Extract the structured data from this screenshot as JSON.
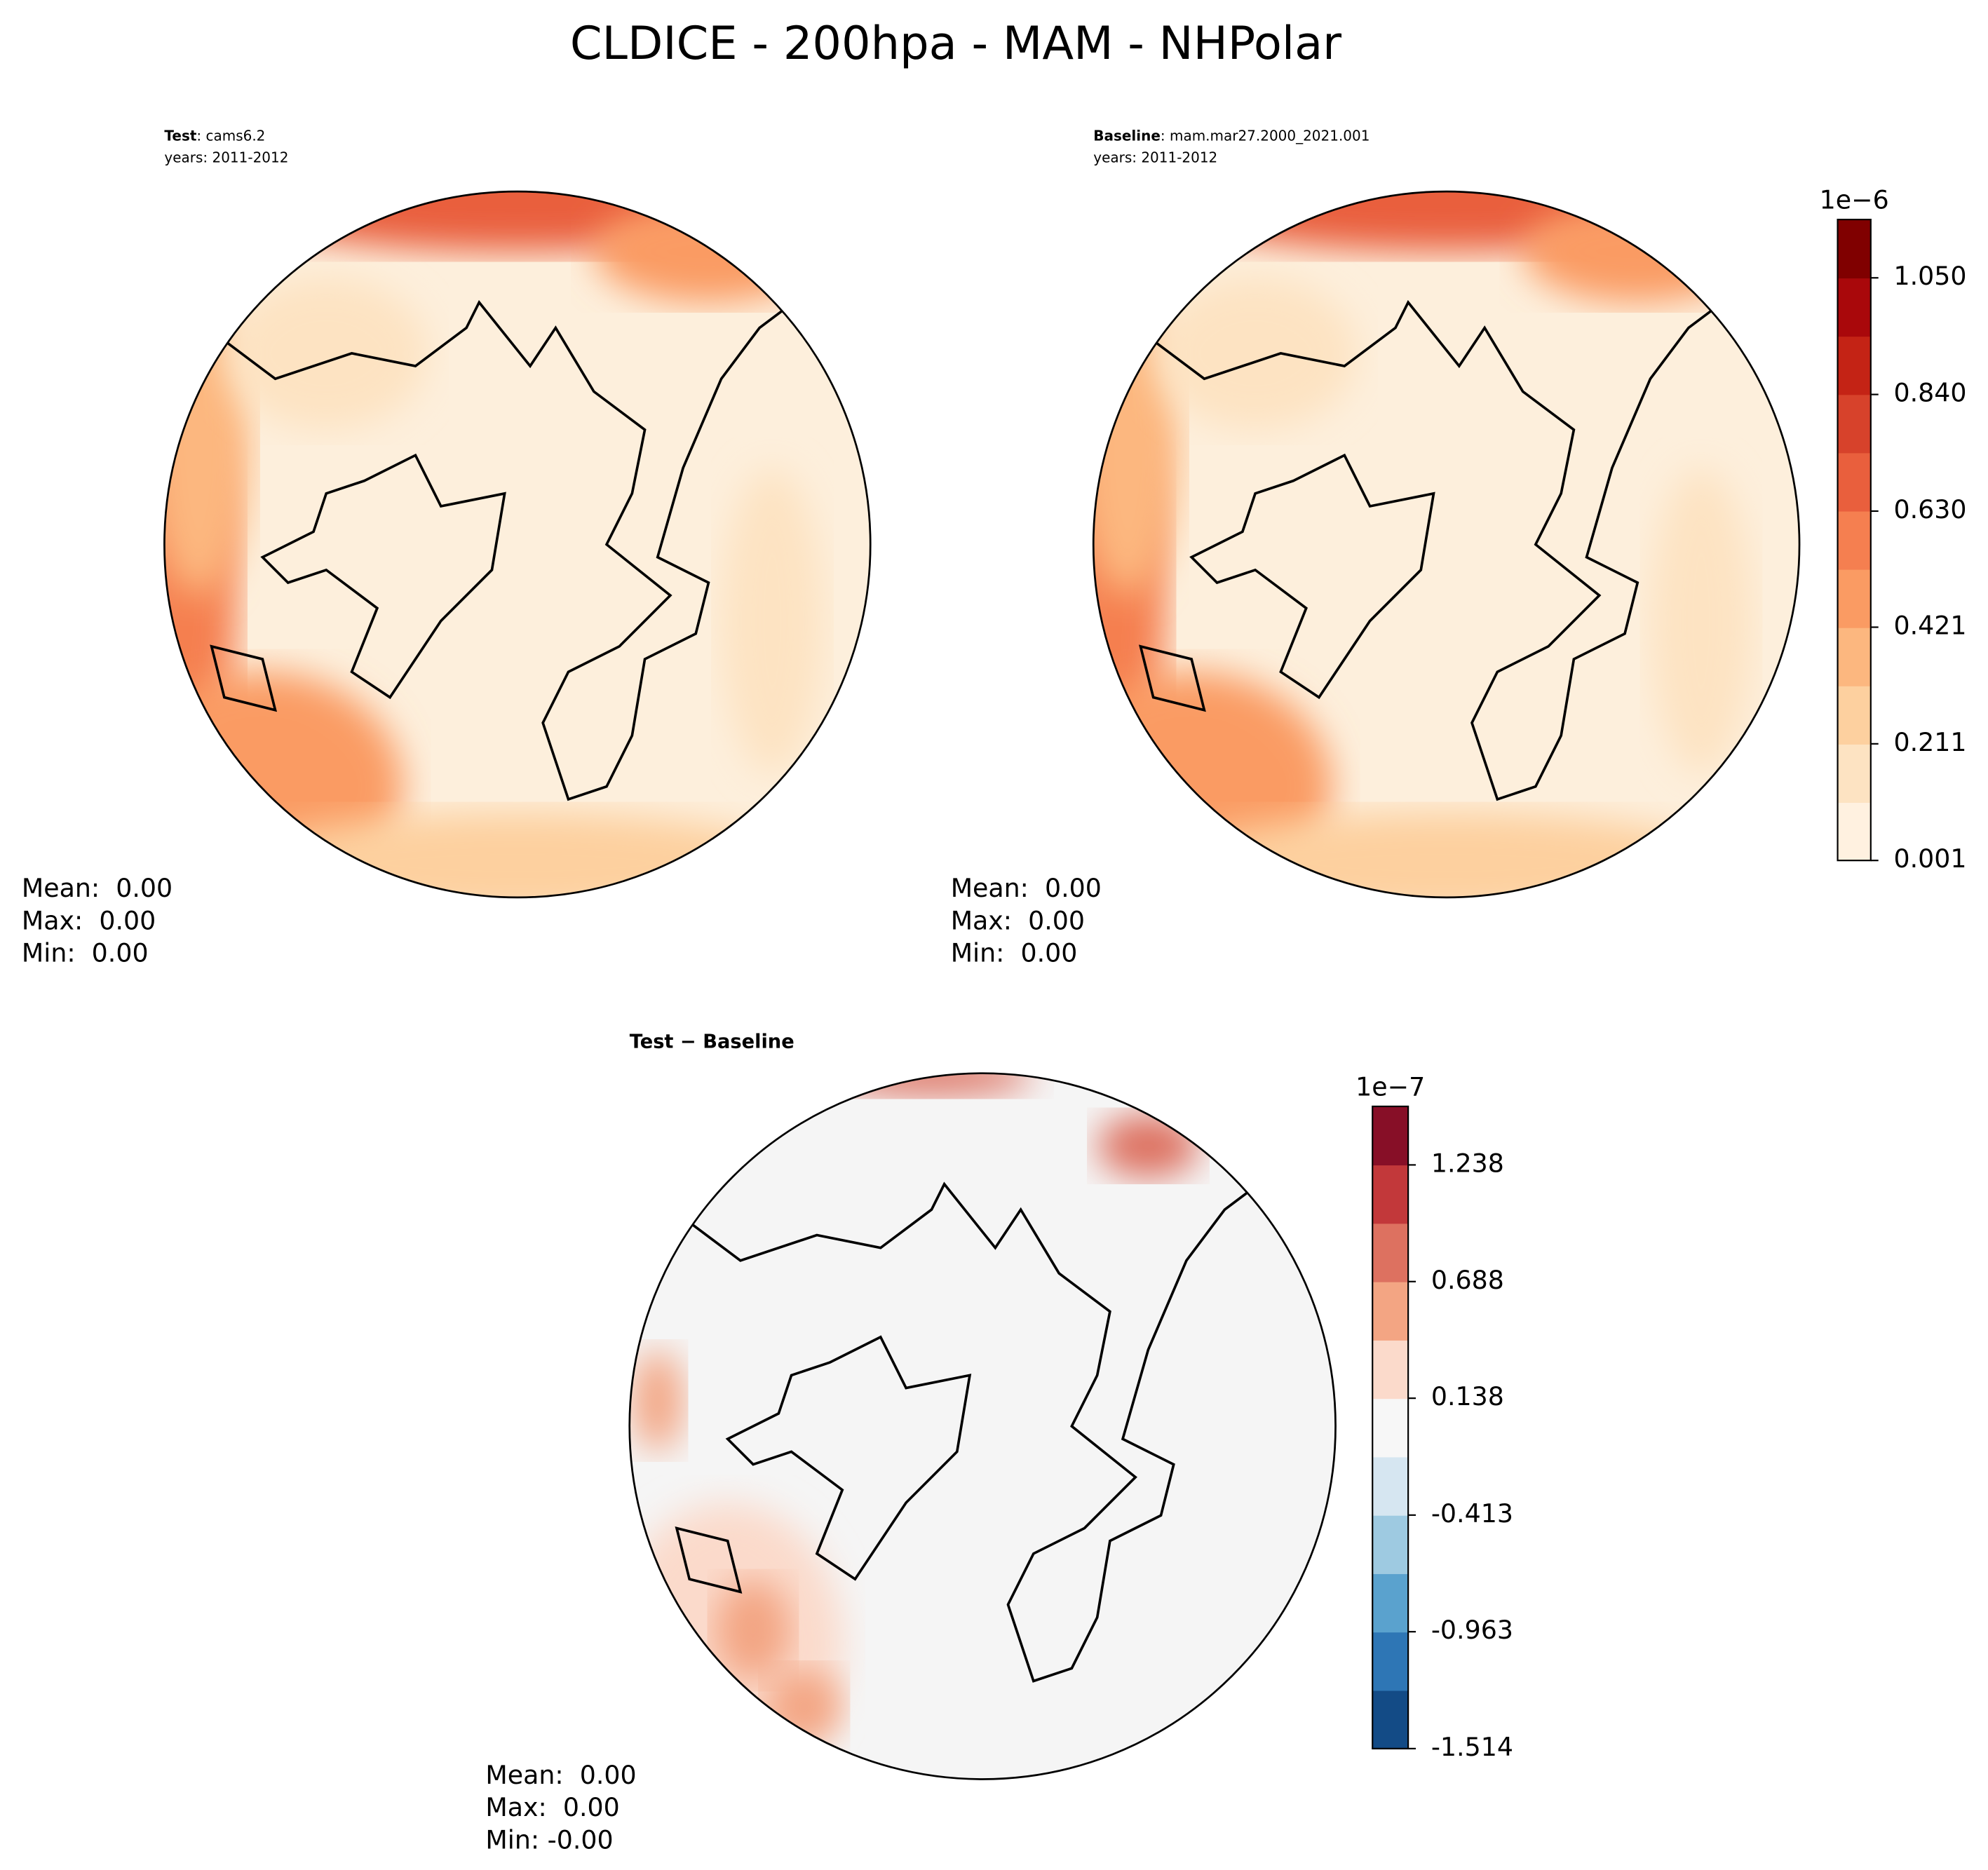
{
  "title": "CLDICE - 200hpa - MAM - NHPolar",
  "panels": [
    {
      "name": "Test",
      "label": ": cams6.2",
      "years": "years: 2011-2012",
      "stats": [
        "Mean:  0.00",
        "Max:  0.00",
        "Min:  0.00"
      ]
    },
    {
      "name": "Baseline",
      "label": ": mam.mar27.2000_2021.001",
      "years": "years: 2011-2012",
      "stats": [
        "Mean:  0.00",
        "Max:  0.00",
        "Min:  0.00"
      ]
    },
    {
      "name": "Test − Baseline",
      "stats": [
        "Mean:  0.00",
        "Max:  0.00",
        "Min: -0.00"
      ]
    }
  ],
  "colorbars": [
    {
      "exponent": "1e−6",
      "lim": [
        0.001,
        1.155
      ],
      "colors": [
        "#fff1e0",
        "#fde3c2",
        "#fdd09f",
        "#fcb77f",
        "#fa9b63",
        "#f57f50",
        "#e95f3d",
        "#d7422b",
        "#c42315",
        "#a9080b",
        "#800000"
      ],
      "ticks": [
        0.001,
        0.211,
        0.421,
        {
          "value": 0.63,
          "label": "0.630"
        },
        {
          "value": 0.84,
          "label": "0.840"
        },
        {
          "value": 1.05,
          "label": "1.050"
        }
      ]
    },
    {
      "exponent": "1e−7",
      "lim": [
        -1.514,
        1.514
      ],
      "colors": [
        "#134b86",
        "#2e76b5",
        "#5aa2ce",
        "#9ecae1",
        "#d6e6f1",
        "#f7f7f7",
        "#fbdacb",
        "#f3a583",
        "#dd7160",
        "#c2383a",
        "#870f27"
      ],
      "ticks": [
        -1.514,
        -0.963,
        -0.413,
        0.138,
        0.688,
        1.238
      ]
    }
  ]
}
